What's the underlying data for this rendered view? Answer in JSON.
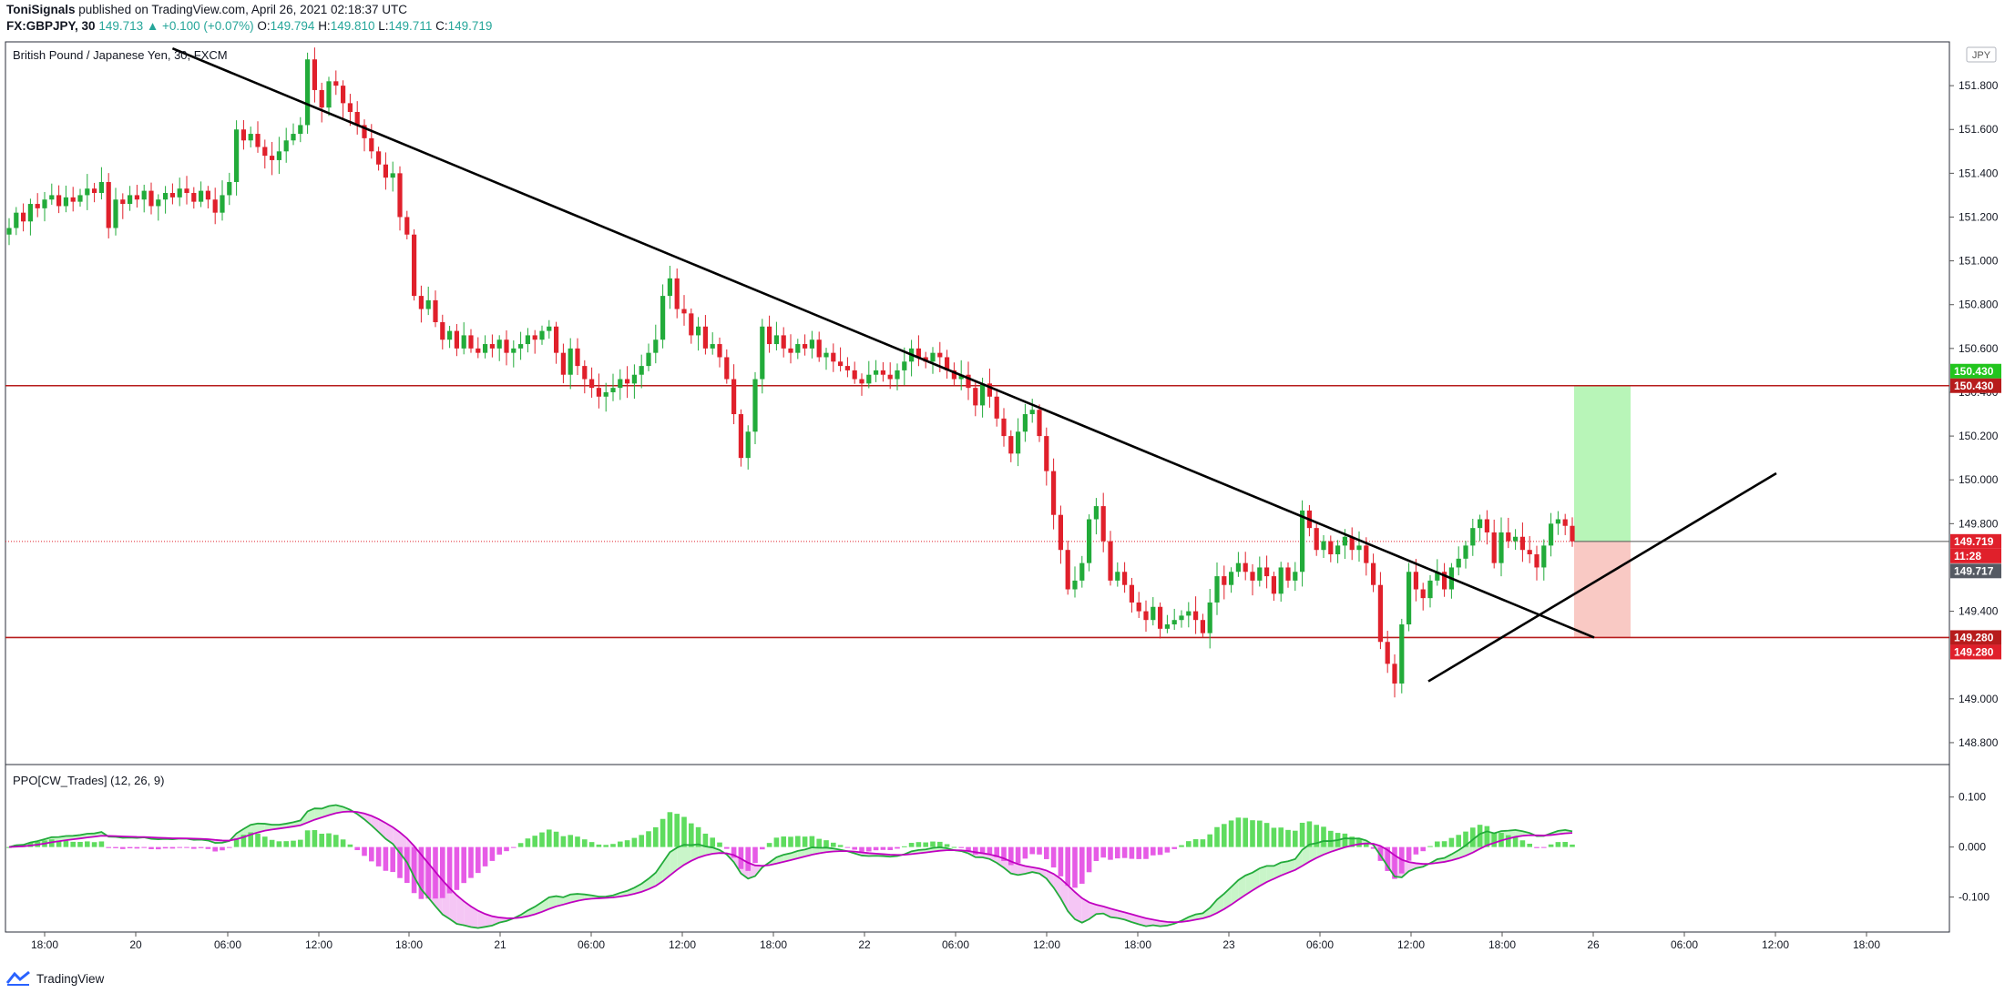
{
  "header": {
    "author": "ToniSignals",
    "published_text": "published on TradingView.com, April 26, 2021 02:18:37 UTC",
    "symbol": "FX:GBPJPY, 30",
    "last": "149.713",
    "change": "▲ +0.100 (+0.07%)",
    "o_label": "O:",
    "o_value": "149.794",
    "h_label": "H:",
    "h_value": "149.810",
    "l_label": "L:",
    "l_value": "149.711",
    "c_label": "C:",
    "c_value": "149.719"
  },
  "footer": {
    "brand": "TradingView"
  },
  "colors": {
    "up": "#22ab3a",
    "down": "#e0202b",
    "level": "#b71c1c",
    "target_zone": "#b8f5b8",
    "stop_zone": "#f9c9c4",
    "ppo_up_hist": "#5fdc5f",
    "ppo_down_hist": "#e65be6",
    "ppo_fill_up": "#c9f5c9",
    "ppo_fill_down": "#f5c6f5"
  },
  "chart_data": [
    {
      "type": "candlestick",
      "title": "British Pound / Japanese Yen, 30, FXCM",
      "currency_badge": "JPY",
      "ylim": [
        148.7,
        152.0
      ],
      "y_ticks": [
        "151.800",
        "151.600",
        "151.400",
        "151.200",
        "151.000",
        "150.800",
        "150.600",
        "150.400",
        "150.200",
        "150.000",
        "149.800",
        "149.400",
        "149.000",
        "148.800"
      ],
      "x_ticks": [
        "18:00",
        "20",
        "06:00",
        "12:00",
        "18:00",
        "21",
        "06:00",
        "12:00",
        "18:00",
        "22",
        "06:00",
        "12:00",
        "18:00",
        "23",
        "06:00",
        "12:00",
        "18:00",
        "26",
        "06:00",
        "12:00",
        "18:00"
      ],
      "levels": [
        150.43,
        149.28
      ],
      "current_price": 149.719,
      "trade_box": {
        "entry": 149.719,
        "target": 150.43,
        "stop": 149.28
      },
      "price_labels": [
        {
          "text": "150.430",
          "value": 150.43,
          "color": "#22c51e",
          "offset": -1
        },
        {
          "text": "150.430",
          "value": 150.43,
          "color": "#b71c1c",
          "offset": 0
        },
        {
          "text": "149.719",
          "value": 149.719,
          "color": "#e0202b",
          "offset": 0
        },
        {
          "text": "11:28",
          "value": 149.719,
          "color": "#e0202b",
          "offset": 1
        },
        {
          "text": "149.717",
          "value": 149.717,
          "color": "#555a63",
          "offset": 2
        },
        {
          "text": "149.280",
          "value": 149.28,
          "color": "#b71c1c",
          "offset": 0
        },
        {
          "text": "149.280",
          "value": 149.28,
          "color": "#e0202b",
          "offset": 1
        }
      ],
      "closes": [
        151.15,
        151.22,
        151.18,
        151.26,
        151.24,
        151.28,
        151.3,
        151.25,
        151.29,
        151.27,
        151.3,
        151.33,
        151.31,
        151.36,
        151.15,
        151.28,
        151.26,
        151.3,
        151.28,
        151.32,
        151.25,
        151.28,
        151.31,
        151.29,
        151.33,
        151.31,
        151.27,
        151.32,
        151.28,
        151.22,
        151.3,
        151.36,
        151.6,
        151.55,
        151.58,
        151.52,
        151.48,
        151.46,
        151.5,
        151.55,
        151.58,
        151.62,
        151.92,
        151.78,
        151.7,
        151.82,
        151.8,
        151.72,
        151.68,
        151.62,
        151.56,
        151.5,
        151.44,
        151.38,
        151.4,
        151.2,
        151.12,
        150.84,
        150.78,
        150.82,
        150.72,
        150.64,
        150.68,
        150.6,
        150.66,
        150.6,
        150.58,
        150.62,
        150.6,
        150.64,
        150.58,
        150.6,
        150.62,
        150.66,
        150.64,
        150.68,
        150.7,
        150.58,
        150.48,
        150.6,
        150.52,
        150.46,
        150.42,
        150.38,
        150.4,
        150.42,
        150.46,
        150.44,
        150.48,
        150.52,
        150.58,
        150.64,
        150.84,
        150.92,
        150.78,
        150.76,
        150.66,
        150.7,
        150.6,
        150.62,
        150.56,
        150.46,
        150.3,
        150.1,
        150.22,
        150.46,
        150.7,
        150.62,
        150.66,
        150.6,
        150.58,
        150.62,
        150.6,
        150.64,
        150.56,
        150.58,
        150.54,
        150.52,
        150.5,
        150.46,
        150.44,
        150.48,
        150.5,
        150.48,
        150.46,
        150.5,
        150.54,
        150.6,
        150.56,
        150.54,
        150.58,
        150.56,
        150.5,
        150.46,
        150.48,
        150.42,
        150.34,
        150.44,
        150.38,
        150.28,
        150.2,
        150.12,
        150.22,
        150.3,
        150.32,
        150.2,
        150.04,
        149.84,
        149.68,
        149.5,
        149.54,
        149.62,
        149.82,
        149.88,
        149.72,
        149.54,
        149.58,
        149.52,
        149.44,
        149.4,
        149.36,
        149.42,
        149.32,
        149.34,
        149.36,
        149.38,
        149.4,
        149.36,
        149.3,
        149.44,
        149.56,
        149.52,
        149.58,
        149.62,
        149.58,
        149.54,
        149.6,
        149.56,
        149.48,
        149.6,
        149.54,
        149.58,
        149.86,
        149.78,
        149.68,
        149.72,
        149.66,
        149.7,
        149.74,
        149.68,
        149.7,
        149.62,
        149.52,
        149.26,
        149.16,
        149.07,
        149.34,
        149.58,
        149.5,
        149.46,
        149.54,
        149.58,
        149.5,
        149.6,
        149.64,
        149.7,
        149.78,
        149.82,
        149.76,
        149.62,
        149.76,
        149.72,
        149.74,
        149.68,
        149.66,
        149.6,
        149.7,
        149.8,
        149.82,
        149.79,
        149.719
      ]
    },
    {
      "type": "line+histogram",
      "title": "PPO[CW_Trades] (12, 26, 9)",
      "ylim": [
        -0.17,
        0.165
      ],
      "y_ticks": [
        "0.100",
        "0.000",
        "-0.100"
      ],
      "series": [
        {
          "values": []
        },
        {
          "values": []
        },
        {
          "values": []
        }
      ]
    }
  ]
}
